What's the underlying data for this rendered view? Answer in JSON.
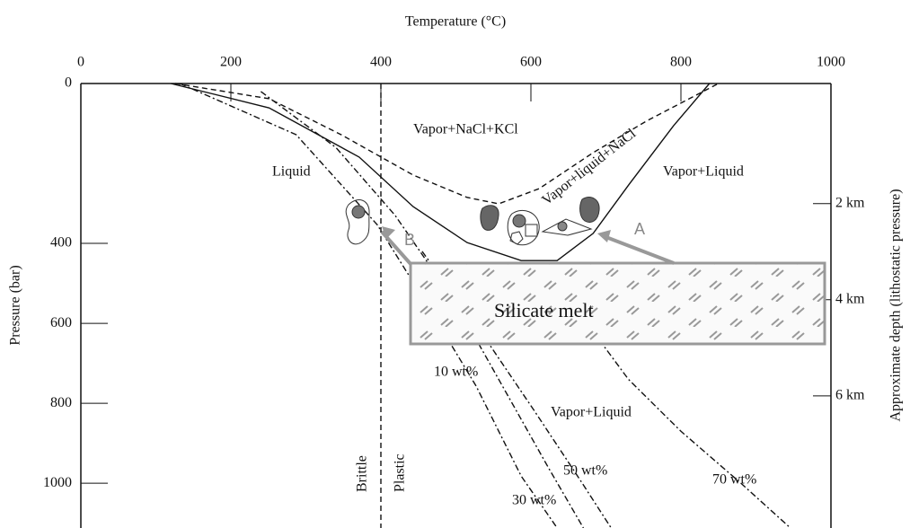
{
  "chart_data": {
    "type": "line",
    "x_label": "Temperature (°C)",
    "y_label": "Pressure (bar)",
    "y2_label": "Approximate depth (lithostatic pressure)",
    "xlim": [
      0,
      1000
    ],
    "xticks": [
      0,
      200,
      400,
      600,
      800,
      1000
    ],
    "ylim": [
      0,
      1112
    ],
    "yticks": [
      0,
      400,
      600,
      800,
      1000
    ],
    "y2lim": [
      -0.5,
      8.75
    ],
    "y2ticks": [
      {
        "value": 2,
        "label": "2 km"
      },
      {
        "value": 4,
        "label": "4 km"
      },
      {
        "value": 6,
        "label": "6 km"
      }
    ],
    "lines": [
      {
        "style": "dashed",
        "color": "#111",
        "x": [
          126,
          251,
          347,
          443,
          515,
          557,
          611,
          683,
          754,
          850
        ],
        "y": [
          0,
          38,
          128,
          229,
          285,
          301,
          263,
          173,
          94,
          0
        ]
      },
      {
        "style": "solid",
        "color": "#111",
        "x": [
          120,
          251,
          371,
          443,
          515,
          587,
          635,
          683,
          731,
          790,
          838
        ],
        "y": [
          0,
          61,
          184,
          308,
          398,
          443,
          443,
          375,
          252,
          106,
          0
        ]
      },
      {
        "style": "dashdot",
        "color": "#111",
        "x": [
          132,
          287,
          395,
          455,
          527,
          587,
          635
        ],
        "y": [
          0,
          128,
          353,
          533,
          757,
          982,
          1112
        ]
      },
      {
        "style": "dashdot",
        "color": "#111",
        "x": [
          240,
          340,
          419,
          500,
          563,
          623,
          670
        ],
        "y": [
          20,
          160,
          330,
          550,
          760,
          960,
          1112
        ]
      },
      {
        "style": "dashdot",
        "color": "#111",
        "x": [
          455,
          540,
          605,
          665,
          707
        ],
        "y": [
          420,
          640,
          820,
          990,
          1112
        ]
      },
      {
        "style": "dashdot",
        "color": "#111",
        "x": [
          659,
          730,
          800,
          880,
          946
        ],
        "y": [
          560,
          740,
          870,
          1000,
          1112
        ]
      },
      {
        "style": "dashed",
        "color": "#111",
        "x": [
          400,
          400
        ],
        "y": [
          0,
          1112
        ]
      }
    ],
    "annotations": [
      "Liquid",
      "Vapor+NaCl+KCl",
      "Vapor+liquid+NaCl",
      "Vapor+Liquid",
      "Silicate melt",
      "10 wt%",
      "Vapor+Liquid",
      "50 wt%",
      "30 wt%",
      "70 wt%",
      "Brittle",
      "Plastic",
      "A",
      "B"
    ]
  }
}
